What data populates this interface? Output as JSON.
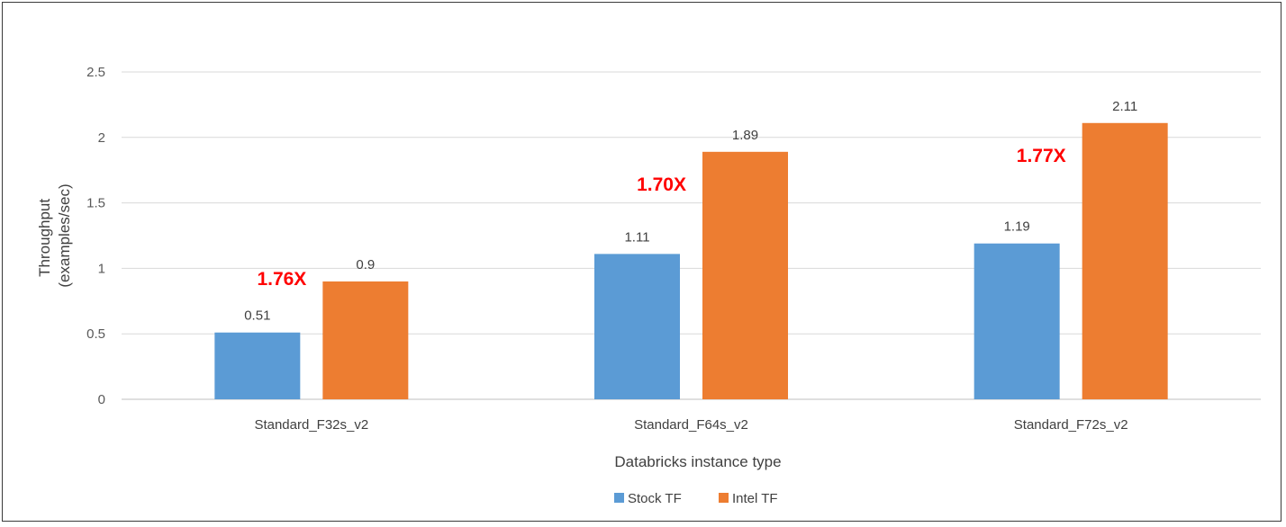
{
  "chart_data": {
    "type": "bar",
    "title": "",
    "xlabel": "Databricks instance type",
    "ylabel_lines": [
      "Throughput",
      "(examples/sec)"
    ],
    "categories": [
      "Standard_F32s_v2",
      "Standard_F64s_v2",
      "Standard_F72s_v2"
    ],
    "series": [
      {
        "name": "Stock TF",
        "values": [
          0.51,
          1.11,
          1.19
        ],
        "labels": [
          "0.51",
          "1.11",
          "1.19"
        ],
        "color": "#5b9bd5"
      },
      {
        "name": "Intel TF",
        "values": [
          0.9,
          1.89,
          2.11
        ],
        "labels": [
          "0.9",
          "1.89",
          "2.11"
        ],
        "color": "#ed7d31"
      }
    ],
    "annotations": [
      {
        "category": "Standard_F32s_v2",
        "text": "1.76X",
        "y": 0.92,
        "color": "#ff0000"
      },
      {
        "category": "Standard_F64s_v2",
        "text": "1.70X",
        "y": 1.64,
        "color": "#ff0000"
      },
      {
        "category": "Standard_F72s_v2",
        "text": "1.77X",
        "y": 1.86,
        "color": "#ff0000"
      }
    ],
    "ylim": [
      0,
      2.5
    ],
    "yticks": [
      "0",
      "0.5",
      "1",
      "1.5",
      "2",
      "2.5"
    ],
    "ytick_values": [
      0,
      0.5,
      1,
      1.5,
      2,
      2.5
    ],
    "grid": true,
    "legend_position": "bottom"
  }
}
